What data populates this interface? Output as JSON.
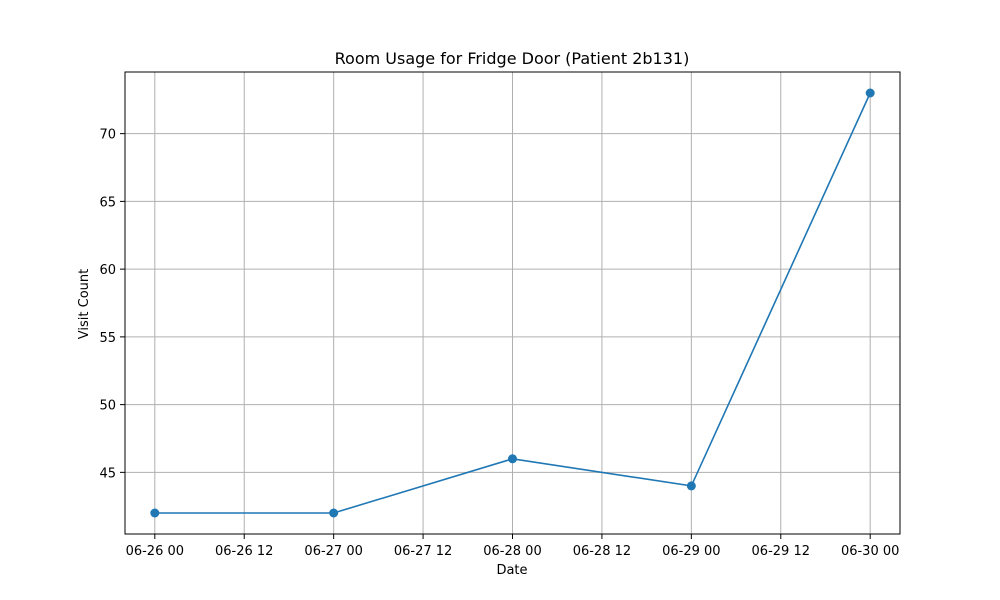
{
  "chart_data": {
    "type": "line",
    "title": "Room Usage for Fridge Door (Patient 2b131)",
    "xlabel": "Date",
    "ylabel": "Visit Count",
    "x_ticks": [
      {
        "label": "06-26 00",
        "t": "2024-06-26T00:00"
      },
      {
        "label": "06-26 12",
        "t": "2024-06-26T12:00"
      },
      {
        "label": "06-27 00",
        "t": "2024-06-27T00:00"
      },
      {
        "label": "06-27 12",
        "t": "2024-06-27T12:00"
      },
      {
        "label": "06-28 00",
        "t": "2024-06-28T00:00"
      },
      {
        "label": "06-28 12",
        "t": "2024-06-28T12:00"
      },
      {
        "label": "06-29 00",
        "t": "2024-06-29T00:00"
      },
      {
        "label": "06-29 12",
        "t": "2024-06-29T12:00"
      },
      {
        "label": "06-30 00",
        "t": "2024-06-30T00:00"
      }
    ],
    "y_ticks": [
      45,
      50,
      55,
      60,
      65,
      70
    ],
    "xlim": [
      "2024-06-25T20:00",
      "2024-06-30T04:00"
    ],
    "ylim": [
      40.45,
      74.55
    ],
    "grid": true,
    "series": [
      {
        "color": "#1f77b4",
        "marker": "circle",
        "points": [
          {
            "x": "2024-06-26T00:00",
            "y": 42
          },
          {
            "x": "2024-06-27T00:00",
            "y": 42
          },
          {
            "x": "2024-06-28T00:00",
            "y": 46
          },
          {
            "x": "2024-06-29T00:00",
            "y": 44
          },
          {
            "x": "2024-06-30T00:00",
            "y": 73
          }
        ]
      }
    ]
  }
}
